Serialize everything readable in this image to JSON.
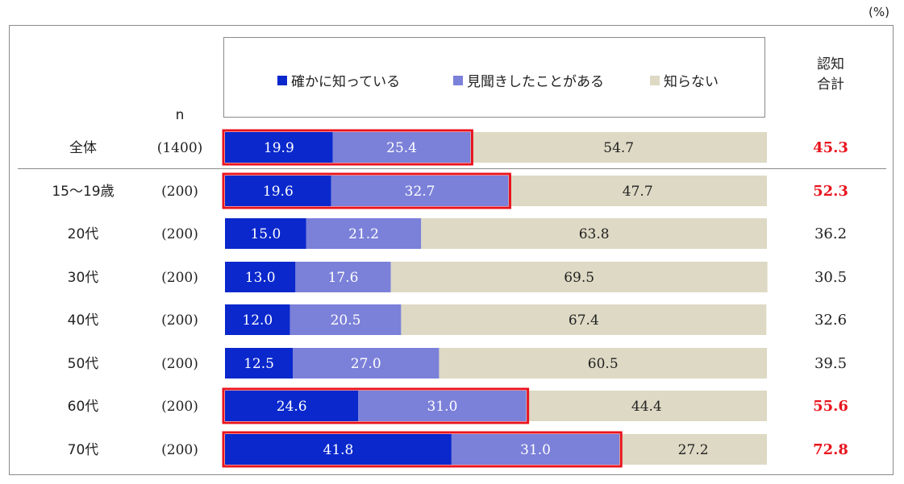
{
  "unit_label": "(%)",
  "header": {
    "n_label": "n",
    "total_label_line1": "認知",
    "total_label_line2": "合計"
  },
  "legend": [
    {
      "label": "確かに知っている",
      "color": "#0a28cc"
    },
    {
      "label": "見聞きしたことがある",
      "color": "#7b80d9"
    },
    {
      "label": "知らない",
      "color": "#ddd9c4"
    }
  ],
  "chart_data": {
    "type": "bar",
    "orientation": "horizontal",
    "stacked": true,
    "unit": "%",
    "xlim": [
      0,
      100
    ],
    "series": [
      {
        "name": "確かに知っている",
        "color": "#0a28cc",
        "values": [
          19.9,
          19.6,
          15.0,
          13.0,
          12.0,
          12.5,
          24.6,
          41.8
        ]
      },
      {
        "name": "見聞きしたことがある",
        "color": "#7b80d9",
        "values": [
          25.4,
          32.7,
          21.2,
          17.6,
          20.5,
          27.0,
          31.0,
          31.0
        ]
      },
      {
        "name": "知らない",
        "color": "#ddd9c4",
        "values": [
          54.7,
          47.7,
          63.8,
          69.5,
          67.4,
          60.5,
          44.4,
          27.2
        ]
      }
    ],
    "rows": [
      {
        "label": "全体",
        "n": "(1400)",
        "total": "45.3",
        "highlighted": true
      },
      {
        "label": "15～19歳",
        "n": "(200)",
        "total": "52.3",
        "highlighted": true
      },
      {
        "label": "20代",
        "n": "(200)",
        "total": "36.2",
        "highlighted": false
      },
      {
        "label": "30代",
        "n": "(200)",
        "total": "30.5",
        "highlighted": false
      },
      {
        "label": "40代",
        "n": "(200)",
        "total": "32.6",
        "highlighted": false
      },
      {
        "label": "50代",
        "n": "(200)",
        "total": "39.5",
        "highlighted": false
      },
      {
        "label": "60代",
        "n": "(200)",
        "total": "55.6",
        "highlighted": true
      },
      {
        "label": "70代",
        "n": "(200)",
        "total": "72.8",
        "highlighted": true
      }
    ],
    "highlight_color": "#e8141e"
  }
}
